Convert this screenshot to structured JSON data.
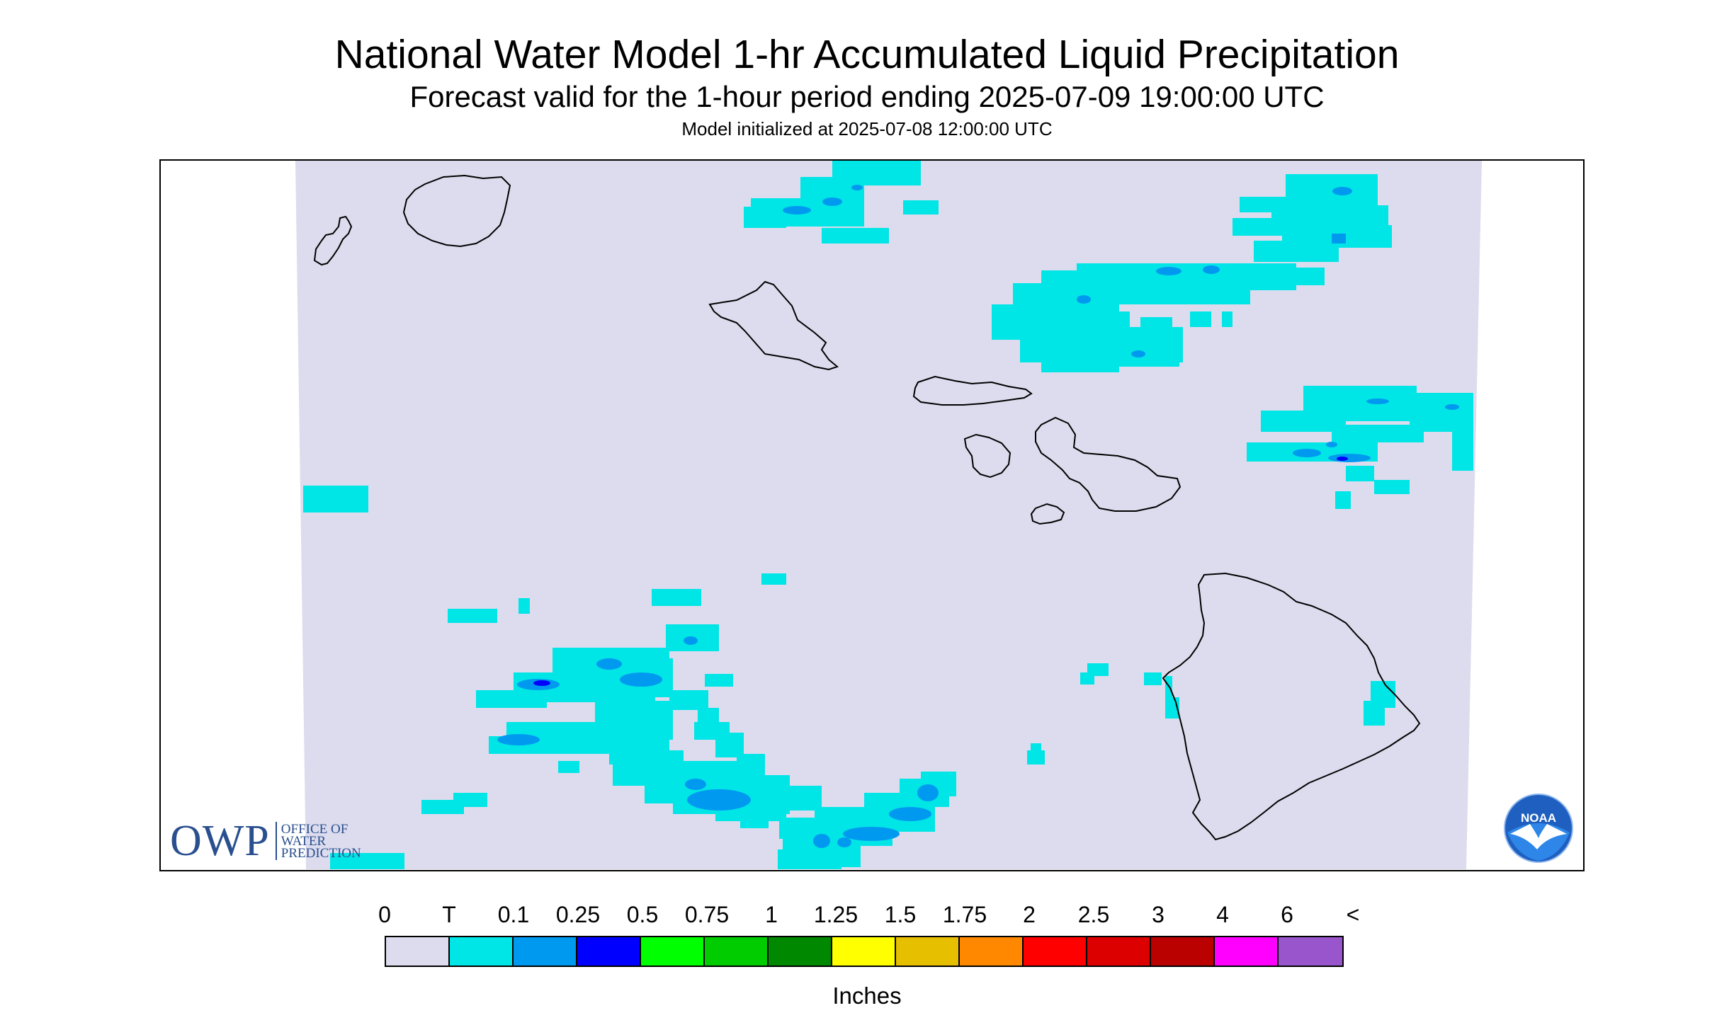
{
  "header": {
    "title": "National Water Model 1-hr Accumulated Liquid Precipitation",
    "subtitle": "Forecast valid for the 1-hour period ending 2025-07-09 19:00:00 UTC",
    "init": "Model initialized at 2025-07-08 12:00:00 UTC"
  },
  "logos": {
    "owp": {
      "mark": "OWP",
      "line1": "OFFICE OF",
      "line2": "WATER",
      "line3": "PREDICTION"
    },
    "noaa": {
      "mark": "NOAA"
    }
  },
  "legend": {
    "ticks": [
      "0",
      "T",
      "0.1",
      "0.25",
      "0.5",
      "0.75",
      "1",
      "1.25",
      "1.5",
      "1.75",
      "2",
      "2.5",
      "3",
      "4",
      "6",
      "<"
    ],
    "colors": [
      "#dcdcee",
      "#00e5e5",
      "#0099f0",
      "#0000ff",
      "#00ff00",
      "#00cc00",
      "#008800",
      "#ffff00",
      "#e6bf00",
      "#ff8800",
      "#ff0000",
      "#dd0000",
      "#bb0000",
      "#ff00ff",
      "#9955cc"
    ],
    "units": "Inches"
  },
  "map": {
    "background_color": "#dcdcee",
    "islands": [
      "Niihau",
      "Kauai",
      "Oahu",
      "Molokai",
      "Lanai",
      "Maui",
      "Kahoolawe",
      "Hawaii"
    ]
  }
}
